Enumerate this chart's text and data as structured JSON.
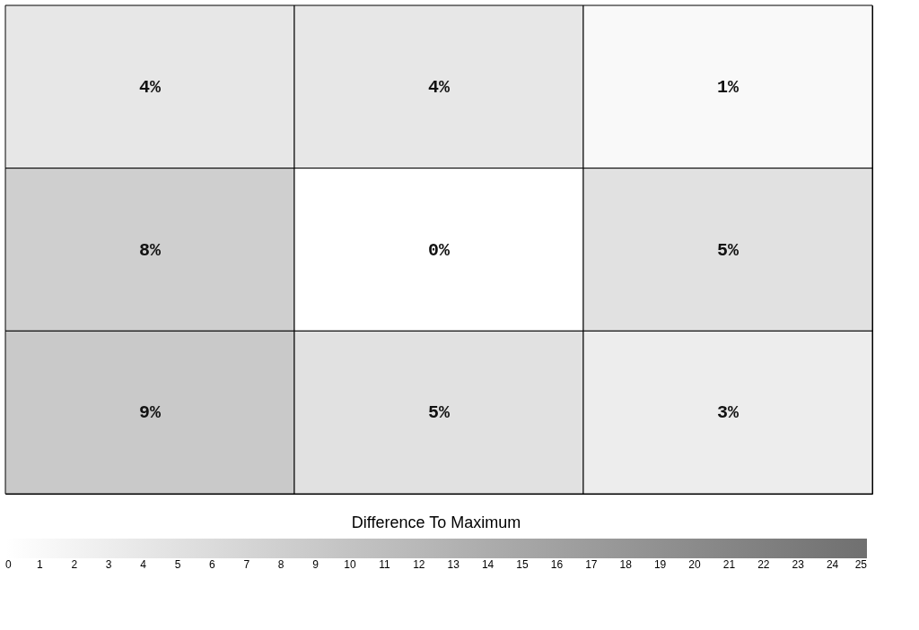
{
  "chart_data": {
    "type": "heatmap",
    "categories": [
      null,
      null,
      null
    ],
    "y_categories": [
      null,
      null,
      null
    ],
    "cells": [
      [
        4,
        4,
        1
      ],
      [
        8,
        0,
        5
      ],
      [
        9,
        5,
        3
      ]
    ],
    "cell_labels": [
      [
        "4%",
        "4%",
        "1%"
      ],
      [
        "8%",
        "0%",
        "5%"
      ],
      [
        "9%",
        "5%",
        "3%"
      ]
    ],
    "clabel": "Difference To Maximum",
    "clim": [
      0,
      25
    ],
    "cticks": [
      0,
      1,
      2,
      3,
      4,
      5,
      6,
      7,
      8,
      9,
      10,
      11,
      12,
      13,
      14,
      15,
      16,
      17,
      18,
      19,
      20,
      21,
      22,
      23,
      24,
      25
    ]
  }
}
